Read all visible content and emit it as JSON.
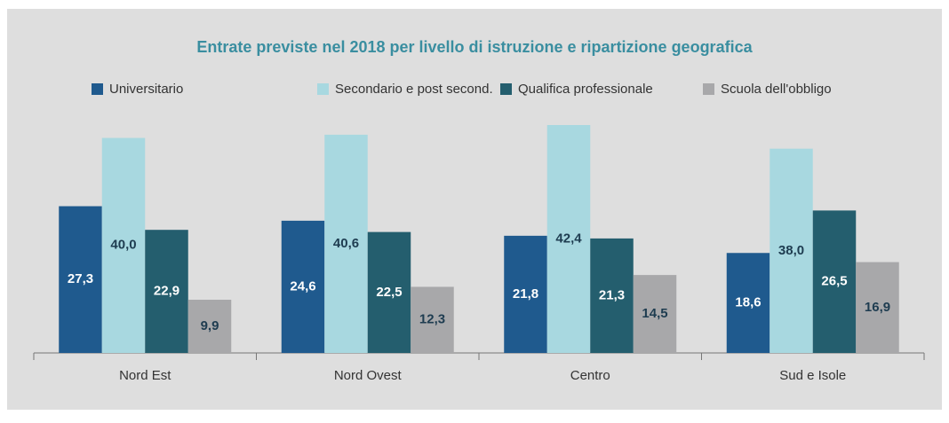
{
  "chart_data": {
    "type": "bar",
    "title": "Entrate previste nel 2018 per livello di istruzione e ripartizione geografica",
    "categories": [
      "Nord Est",
      "Nord Ovest",
      "Centro",
      "Sud e Isole"
    ],
    "series": [
      {
        "name": "Universitario",
        "color": "#1f5a8e",
        "values": [
          27.3,
          24.6,
          21.8,
          18.6
        ],
        "value_labels": [
          "27,3",
          "24,6",
          "21,8",
          "18,6"
        ]
      },
      {
        "name": "Secondario e post second.",
        "color": "#a8d8e0",
        "values": [
          40.0,
          40.6,
          42.4,
          38.0
        ],
        "value_labels": [
          "40,0",
          "40,6",
          "42,4",
          "38,0"
        ]
      },
      {
        "name": "Qualifica professionale",
        "color": "#245e6e",
        "values": [
          22.9,
          22.5,
          21.3,
          26.5
        ],
        "value_labels": [
          "22,9",
          "22,5",
          "21,3",
          "26,5"
        ]
      },
      {
        "name": "Scuola dell'obbligo",
        "color": "#a8a8aa",
        "values": [
          9.9,
          12.3,
          14.5,
          16.9
        ],
        "value_labels": [
          "9,9",
          "12,3",
          "14,5",
          "16,9"
        ]
      }
    ]
  }
}
